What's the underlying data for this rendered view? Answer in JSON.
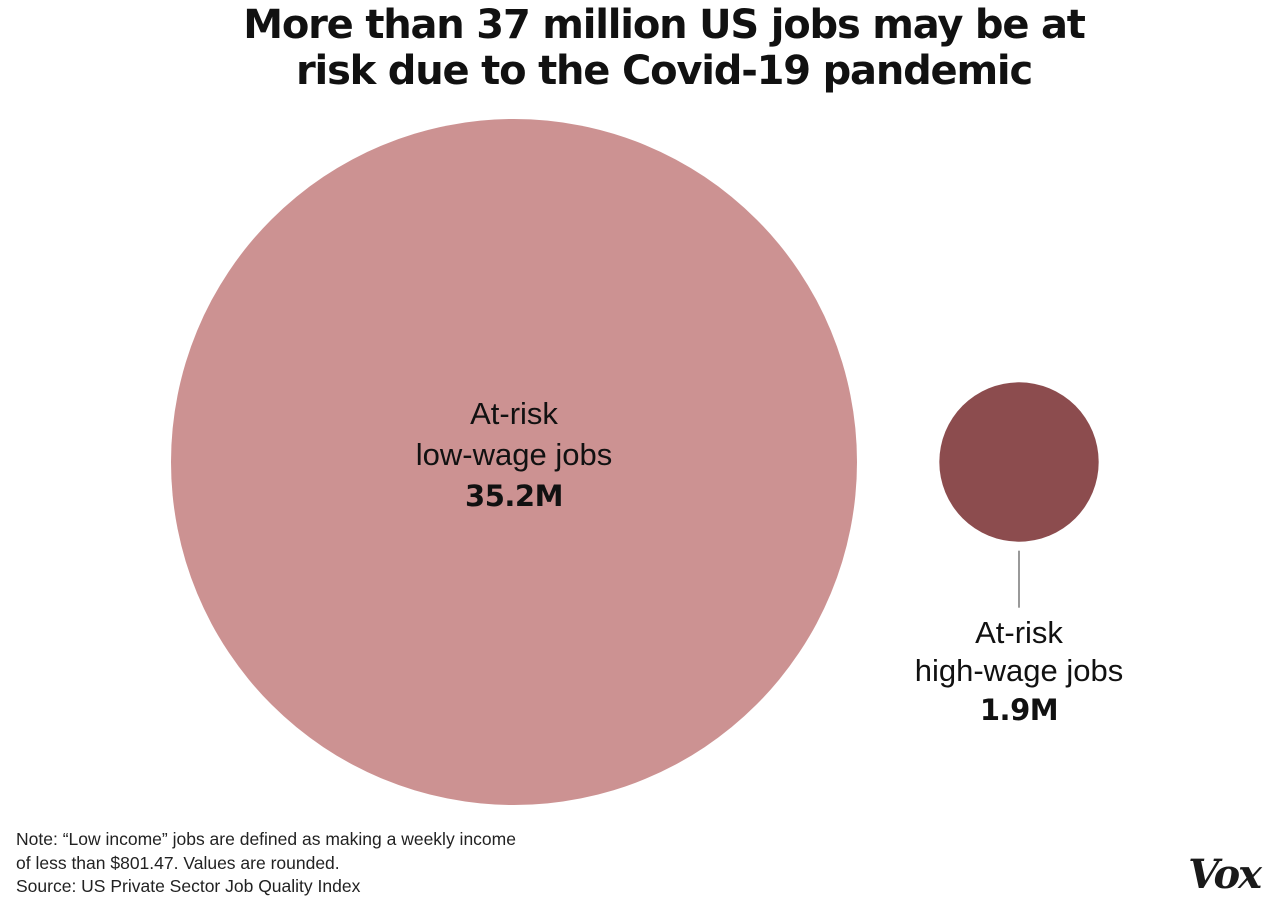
{
  "title_lines": [
    "More than 37 million US jobs may be at",
    "risk due to the Covid-19 pandemic"
  ],
  "chart_data": {
    "type": "bubble",
    "series": [
      {
        "label_lines": [
          "At-risk",
          "low-wage jobs"
        ],
        "value": 35.2,
        "value_label": "35.2M",
        "color": "#cc9292"
      },
      {
        "label_lines": [
          "At-risk",
          "high-wage jobs"
        ],
        "value": 1.9,
        "value_label": "1.9M",
        "color": "#8c4c4e"
      }
    ]
  },
  "footnote": {
    "note_lines": [
      "Note: “Low income” jobs are defined as making a weekly income",
      "of less than $801.47. Values are rounded."
    ],
    "source": "Source: US Private Sector Job Quality Index"
  },
  "logo": "Vox",
  "colors": {
    "low_wage": "#cc9292",
    "high_wage": "#8c4c4e",
    "leader_line": "#777777"
  }
}
